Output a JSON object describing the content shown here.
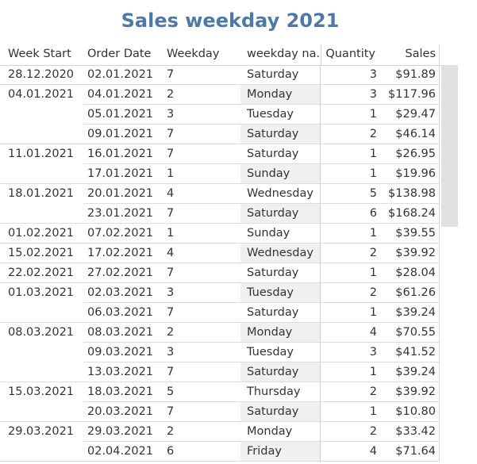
{
  "title": "Sales weekday 2021",
  "headers": {
    "week_start": "Week Start",
    "order_date": "Order Date",
    "weekday": "Weekday",
    "weekday_name": "weekday na..",
    "quantity": "Quantity",
    "sales": "Sales"
  },
  "rows": [
    {
      "week_start": "28.12.2020",
      "order_date": "02.01.2021",
      "weekday": "7",
      "weekday_name": "Saturday",
      "quantity": "3",
      "sales": "$91.89"
    },
    {
      "week_start": "04.01.2021",
      "order_date": "04.01.2021",
      "weekday": "2",
      "weekday_name": "Monday",
      "quantity": "3",
      "sales": "$117.96"
    },
    {
      "week_start": "",
      "order_date": "05.01.2021",
      "weekday": "3",
      "weekday_name": "Tuesday",
      "quantity": "1",
      "sales": "$29.47"
    },
    {
      "week_start": "",
      "order_date": "09.01.2021",
      "weekday": "7",
      "weekday_name": "Saturday",
      "quantity": "2",
      "sales": "$46.14"
    },
    {
      "week_start": "11.01.2021",
      "order_date": "16.01.2021",
      "weekday": "7",
      "weekday_name": "Saturday",
      "quantity": "1",
      "sales": "$26.95"
    },
    {
      "week_start": "",
      "order_date": "17.01.2021",
      "weekday": "1",
      "weekday_name": "Sunday",
      "quantity": "1",
      "sales": "$19.96"
    },
    {
      "week_start": "18.01.2021",
      "order_date": "20.01.2021",
      "weekday": "4",
      "weekday_name": "Wednesday",
      "quantity": "5",
      "sales": "$138.98"
    },
    {
      "week_start": "",
      "order_date": "23.01.2021",
      "weekday": "7",
      "weekday_name": "Saturday",
      "quantity": "6",
      "sales": "$168.24"
    },
    {
      "week_start": "01.02.2021",
      "order_date": "07.02.2021",
      "weekday": "1",
      "weekday_name": "Sunday",
      "quantity": "1",
      "sales": "$39.55"
    },
    {
      "week_start": "15.02.2021",
      "order_date": "17.02.2021",
      "weekday": "4",
      "weekday_name": "Wednesday",
      "quantity": "2",
      "sales": "$39.92"
    },
    {
      "week_start": "22.02.2021",
      "order_date": "27.02.2021",
      "weekday": "7",
      "weekday_name": "Saturday",
      "quantity": "1",
      "sales": "$28.04"
    },
    {
      "week_start": "01.03.2021",
      "order_date": "02.03.2021",
      "weekday": "3",
      "weekday_name": "Tuesday",
      "quantity": "2",
      "sales": "$61.26"
    },
    {
      "week_start": "",
      "order_date": "06.03.2021",
      "weekday": "7",
      "weekday_name": "Saturday",
      "quantity": "1",
      "sales": "$39.24"
    },
    {
      "week_start": "08.03.2021",
      "order_date": "08.03.2021",
      "weekday": "2",
      "weekday_name": "Monday",
      "quantity": "4",
      "sales": "$70.55"
    },
    {
      "week_start": "",
      "order_date": "09.03.2021",
      "weekday": "3",
      "weekday_name": "Tuesday",
      "quantity": "3",
      "sales": "$41.52"
    },
    {
      "week_start": "",
      "order_date": "13.03.2021",
      "weekday": "7",
      "weekday_name": "Saturday",
      "quantity": "1",
      "sales": "$39.24"
    },
    {
      "week_start": "15.03.2021",
      "order_date": "18.03.2021",
      "weekday": "5",
      "weekday_name": "Thursday",
      "quantity": "2",
      "sales": "$39.92"
    },
    {
      "week_start": "",
      "order_date": "20.03.2021",
      "weekday": "7",
      "weekday_name": "Saturday",
      "quantity": "1",
      "sales": "$10.80"
    },
    {
      "week_start": "29.03.2021",
      "order_date": "29.03.2021",
      "weekday": "2",
      "weekday_name": "Monday",
      "quantity": "2",
      "sales": "$33.42"
    },
    {
      "week_start": "",
      "order_date": "02.04.2021",
      "weekday": "6",
      "weekday_name": "Friday",
      "quantity": "4",
      "sales": "$71.64"
    }
  ]
}
